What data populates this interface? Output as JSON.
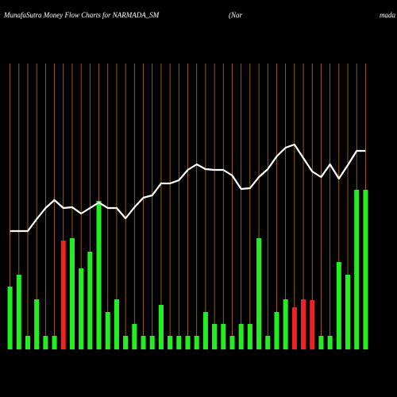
{
  "chart_data": {
    "type": "bar",
    "title": "MunafaSutra  Money Flow  Charts for NARMADA_SM",
    "subtitle": "(Nar",
    "subtitle_end": "mada",
    "background": "#000000",
    "grid_color": "#b8731a",
    "line_color": "#ffffff",
    "categories": [
      null,
      null,
      null,
      null,
      null,
      null,
      null,
      null,
      null,
      null,
      null,
      null,
      null,
      null,
      null,
      null,
      null,
      null,
      null,
      null,
      null,
      null,
      null,
      null,
      null,
      null,
      null,
      null,
      null,
      null,
      null,
      null,
      null,
      null,
      null,
      null,
      null,
      null,
      null,
      null,
      null
    ],
    "ylim": [
      0,
      360
    ],
    "series": [
      {
        "colors": [
          "#22ee22",
          "#22ee22",
          "#22ee22",
          "#22ee22",
          "#22ee22",
          "#22ee22",
          "#ee2222",
          "#22ee22",
          "#22ee22",
          "#22ee22",
          "#22ee22",
          "#22ee22",
          "#22ee22",
          "#22ee22",
          "#22ee22",
          "#22ee22",
          "#22ee22",
          "#22ee22",
          "#22ee22",
          "#22ee22",
          "#22ee22",
          "#22ee22",
          "#22ee22",
          "#22ee22",
          "#22ee22",
          "#22ee22",
          "#22ee22",
          "#22ee22",
          "#22ee22",
          "#22ee22",
          "#22ee22",
          "#22ee22",
          "#ee2222",
          "#ee2222",
          "#ee2222",
          "#22ee22",
          "#22ee22",
          "#22ee22",
          "#22ee22",
          "#22ee22",
          "#22ee22"
        ],
        "values": [
          79,
          94,
          17,
          63,
          17,
          17,
          137,
          140,
          102,
          123,
          187,
          47,
          63,
          17,
          32,
          17,
          17,
          56,
          17,
          17,
          17,
          17,
          47,
          32,
          32,
          17,
          32,
          32,
          140,
          17,
          47,
          63,
          53,
          63,
          62,
          17,
          17,
          110,
          94,
          201,
          201
        ]
      },
      {
        "kind": "line",
        "values": [
          149,
          149,
          149,
          164,
          178,
          188,
          178,
          179,
          171,
          178,
          185,
          178,
          178,
          165,
          179,
          191,
          194,
          209,
          209,
          213,
          226,
          233,
          227,
          226,
          226,
          219,
          202,
          203,
          217,
          227,
          243,
          254,
          258,
          241,
          224,
          217,
          233,
          215,
          232,
          250,
          250
        ]
      }
    ]
  }
}
